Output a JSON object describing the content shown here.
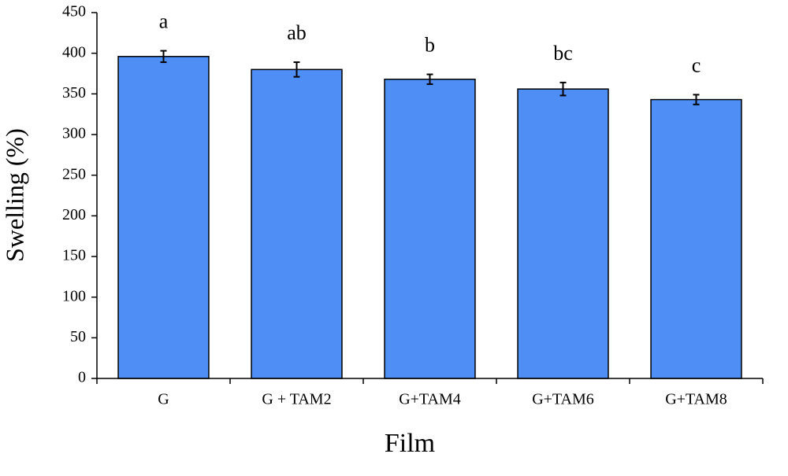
{
  "chart_data": {
    "type": "bar",
    "x_label": "Film",
    "y_label": "Swelling (%)",
    "categories": [
      "G",
      "G + TAM2",
      "G+TAM4",
      "G+TAM6",
      "G+TAM8"
    ],
    "values": [
      396,
      380,
      368,
      356,
      343
    ],
    "errors": [
      7,
      9,
      6,
      8,
      6
    ],
    "annotations": [
      "a",
      "ab",
      "b",
      "bc",
      "c"
    ],
    "color": "#4f8ff5",
    "ylim": [
      0,
      450
    ],
    "yticks": [
      0,
      50,
      100,
      150,
      200,
      250,
      300,
      350,
      400,
      450
    ],
    "grid": false
  }
}
